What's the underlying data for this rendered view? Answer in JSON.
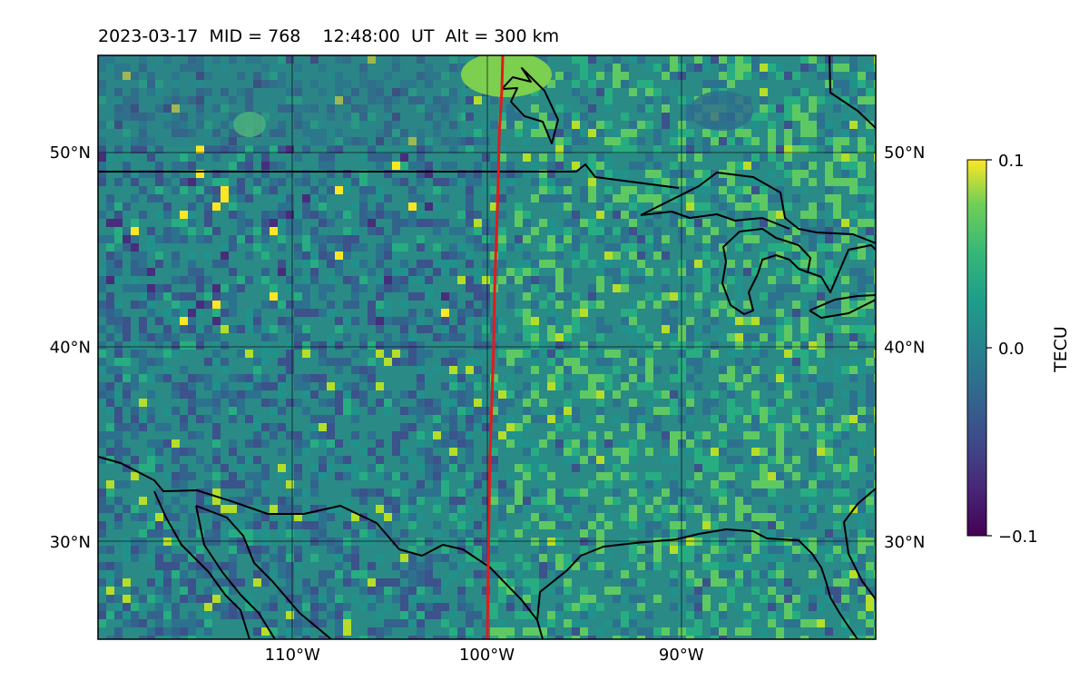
{
  "title": "2023-03-17  MID = 768    12:48:00  UT  Alt = 300 km",
  "map": {
    "lon_range": [
      -120,
      -80
    ],
    "lat_range": [
      25,
      55
    ],
    "lon_ticks": [
      {
        "lon": -110,
        "label": "110°W"
      },
      {
        "lon": -100,
        "label": "100°W"
      },
      {
        "lon": -90,
        "label": "90°W"
      }
    ],
    "lat_ticks": [
      {
        "lat": 50,
        "label": "50°N"
      },
      {
        "lat": 40,
        "label": "40°N"
      },
      {
        "lat": 30,
        "label": "30°N"
      }
    ],
    "grid": true,
    "track_color": "#e41a1c",
    "coast_color": "#000000"
  },
  "colorbar": {
    "label": "TECU",
    "min": -0.1,
    "max": 0.1,
    "ticks": [
      {
        "value": 0.1,
        "label": "0.1"
      },
      {
        "value": 0.0,
        "label": "0.0"
      },
      {
        "value": -0.1,
        "label": "−0.1"
      }
    ],
    "colormap": "viridis"
  }
}
